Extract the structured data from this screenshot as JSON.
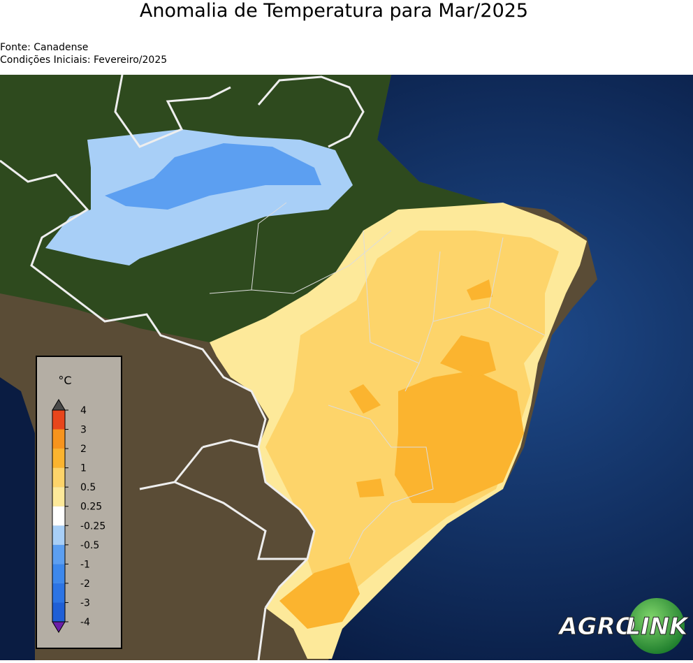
{
  "header": {
    "title": "Anomalia de Temperatura para Mar/2025",
    "source": "Fonte: Canadense",
    "initial_conditions": "Condições Iniciais: Fevereiro/2025"
  },
  "colorbar": {
    "unit": "°C",
    "ticks": [
      -4,
      -3,
      -2,
      -1,
      -0.5,
      -0.25,
      0.25,
      0.5,
      1,
      2,
      3,
      4
    ],
    "colors": [
      "#1f5fd6",
      "#2c74e4",
      "#3d88ec",
      "#5c9ff1",
      "#a8cff7",
      "#ffffff",
      "#fde99a",
      "#fdd46a",
      "#fbb42f",
      "#f7941d",
      "#e8461c"
    ],
    "under_color": "#6a1fa8",
    "over_color": "#4a4a4a"
  },
  "logo": {
    "left": "AGRO",
    "right": "LINK"
  }
}
